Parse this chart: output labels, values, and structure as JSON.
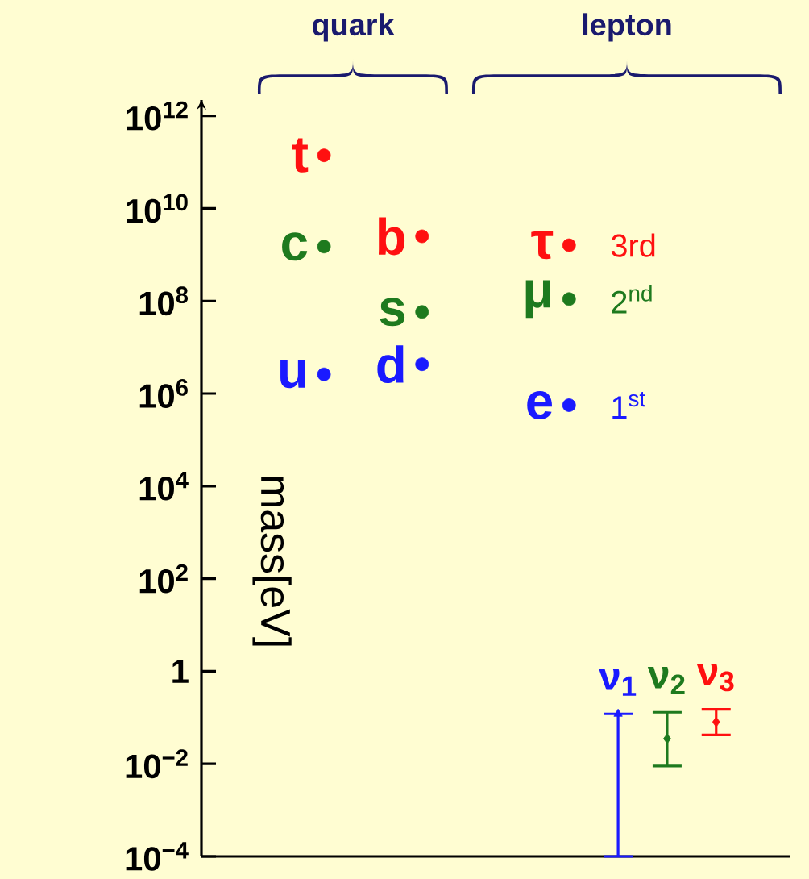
{
  "chart_data": {
    "type": "scatter",
    "ylabel": "mass[eV]",
    "log": "y",
    "tick_labels": "y",
    "marker": "circle",
    "categories": [
      null,
      null,
      null,
      null,
      null,
      null,
      null,
      null,
      null,
      null,
      null,
      null
    ],
    "ylim": [
      0.0001,
      2200000000000.0
    ],
    "yticks": [
      {
        "value": 0.0001,
        "label": "10$^{−4}$"
      },
      {
        "value": 0.01,
        "label": "10$^{−2}$"
      },
      {
        "value": 1,
        "label": "1"
      },
      {
        "value": 100,
        "label": "10$^{2}$"
      },
      {
        "value": 10000,
        "label": "10$^{4}$"
      },
      {
        "value": 1000000,
        "label": "10$^{6}$"
      },
      {
        "value": 100000000,
        "label": "10$^{8}$"
      },
      {
        "value": 10000000000,
        "label": "10$^{10}$"
      },
      {
        "value": 1000000000000,
        "label": "10$^{12}$"
      }
    ],
    "annotations": [
      "quark",
      "lepton"
    ],
    "series": [
      {
        "name": "3rd",
        "color": "#ff1010",
        "values": [
          null,
          null,
          140000000000.0,
          null,
          2500000000.0,
          null,
          null,
          1600000000.0,
          null,
          null,
          null,
          null
        ],
        "value_labels": [
          null,
          null,
          "t",
          null,
          "b",
          null,
          null,
          "τ",
          null,
          null,
          null,
          null
        ]
      },
      {
        "name": "2$^{nd}$",
        "color": "#1e7a1e",
        "values": [
          null,
          null,
          1500000000.0,
          null,
          58000000.0,
          null,
          null,
          110000000.0,
          null,
          null,
          null,
          null
        ],
        "value_labels": [
          null,
          null,
          "c",
          null,
          "s",
          null,
          null,
          "μ",
          null,
          null,
          null,
          null
        ]
      },
      {
        "name": "1$^{st}$",
        "color": "#1a1aff",
        "values": [
          null,
          null,
          2600000.0,
          null,
          4300000.0,
          null,
          null,
          560000.0,
          null,
          null,
          null,
          null
        ],
        "value_labels": [
          null,
          null,
          "u",
          null,
          "d",
          null,
          null,
          "e",
          null,
          null,
          null,
          null
        ]
      },
      {
        "name": "ν$_{1}$",
        "color": "#1a1aff",
        "marker": "triangle",
        "values": [
          null,
          null,
          null,
          null,
          null,
          null,
          null,
          null,
          0.12,
          null,
          null,
          null
        ],
        "errors": [
          null,
          null,
          null,
          null,
          null,
          null,
          null,
          null,
          [
            0.0001,
            0.12
          ],
          null,
          null,
          null
        ]
      },
      {
        "name": "ν$_{2}$",
        "color": "#1e7a1e",
        "marker": "diamond",
        "values": [
          null,
          null,
          null,
          null,
          null,
          null,
          null,
          null,
          null,
          0.035,
          null,
          null
        ],
        "errors": [
          null,
          null,
          null,
          null,
          null,
          null,
          null,
          null,
          null,
          [
            0.009,
            0.13
          ],
          null,
          null
        ]
      },
      {
        "name": "ν$_{3}$",
        "color": "#ff1010",
        "marker": "diamond",
        "values": [
          null,
          null,
          null,
          null,
          null,
          null,
          null,
          null,
          null,
          null,
          0.08,
          null
        ],
        "errors": [
          null,
          null,
          null,
          null,
          null,
          null,
          null,
          null,
          null,
          null,
          [
            0.042,
            0.15
          ],
          null
        ]
      }
    ]
  }
}
